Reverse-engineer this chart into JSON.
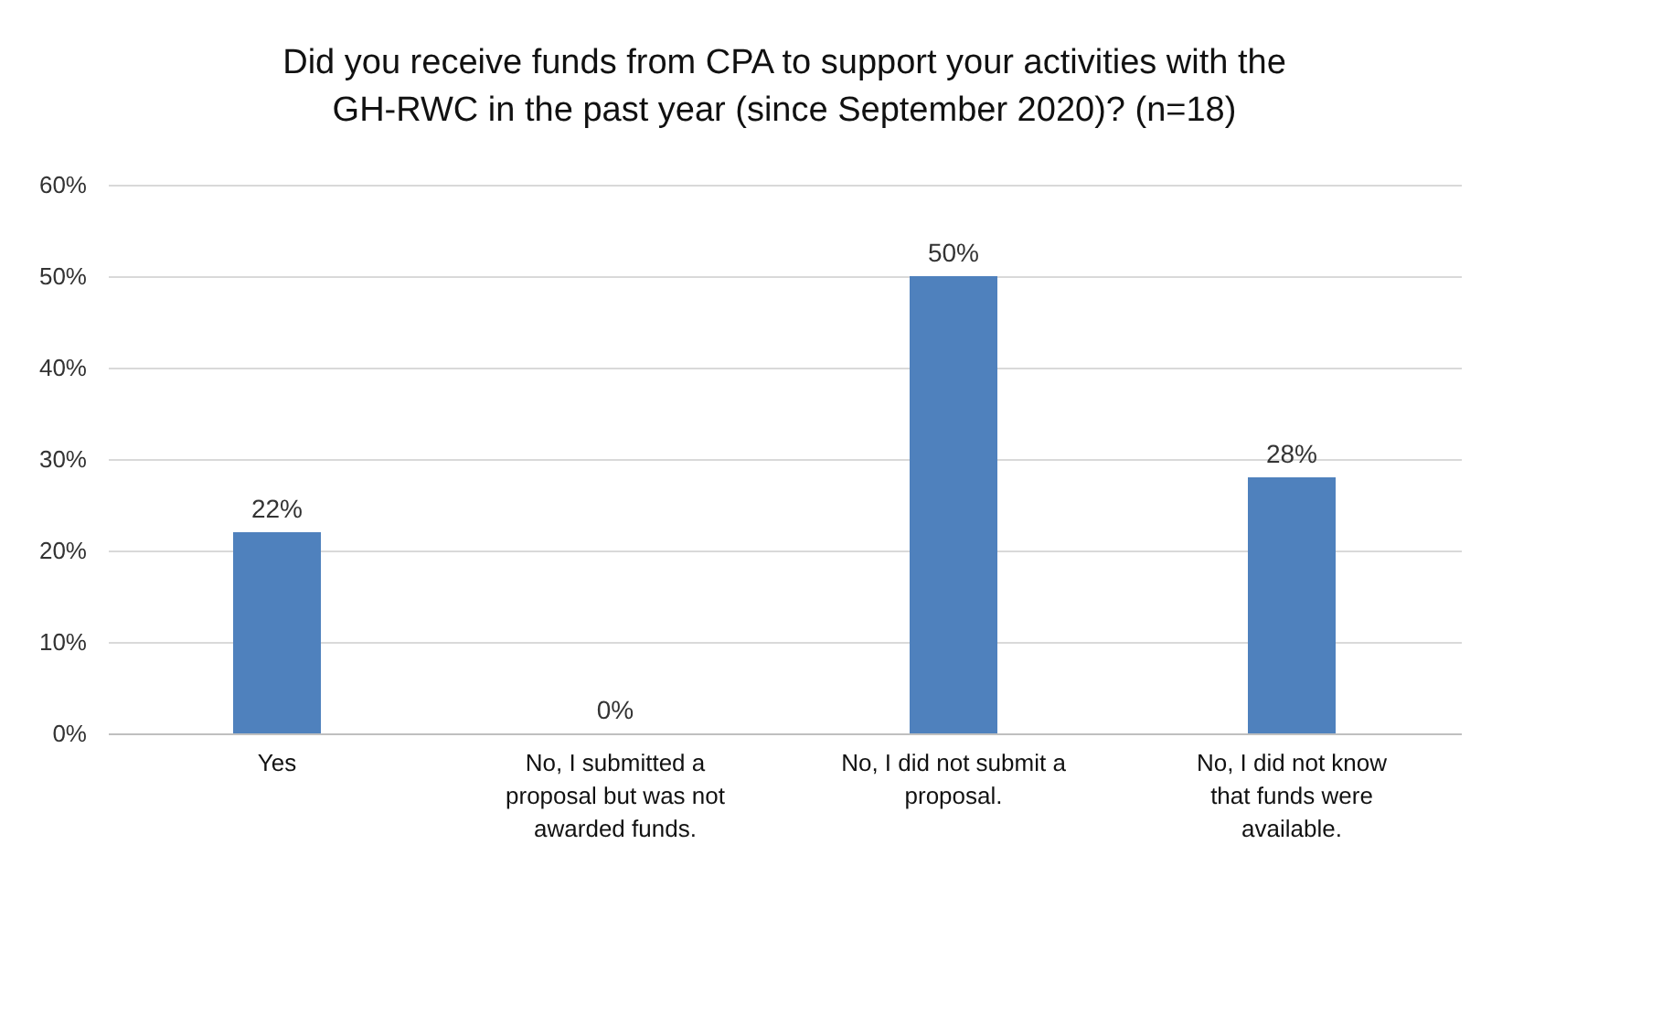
{
  "chart_data": {
    "type": "bar",
    "title": "Did you receive funds from CPA to support your activities with the GH-RWC  in the past year (since September 2020)? (n=18)",
    "categories": [
      "Yes",
      "No, I submitted a proposal but was not awarded funds.",
      "No, I did not submit a proposal.",
      "No, I did not know that funds were available."
    ],
    "values": [
      22,
      0,
      50,
      28
    ],
    "color": "#4f81bd",
    "value_labels": [
      "22%",
      "0%",
      "50%",
      "28%"
    ],
    "ylim": [
      0,
      60
    ],
    "yticks": [
      {
        "value": 0,
        "label": "0%"
      },
      {
        "value": 10,
        "label": "10%"
      },
      {
        "value": 20,
        "label": "20%"
      },
      {
        "value": 30,
        "label": "30%"
      },
      {
        "value": 40,
        "label": "40%"
      },
      {
        "value": 50,
        "label": "50%"
      },
      {
        "value": 60,
        "label": "60%"
      }
    ],
    "grid": "y"
  }
}
